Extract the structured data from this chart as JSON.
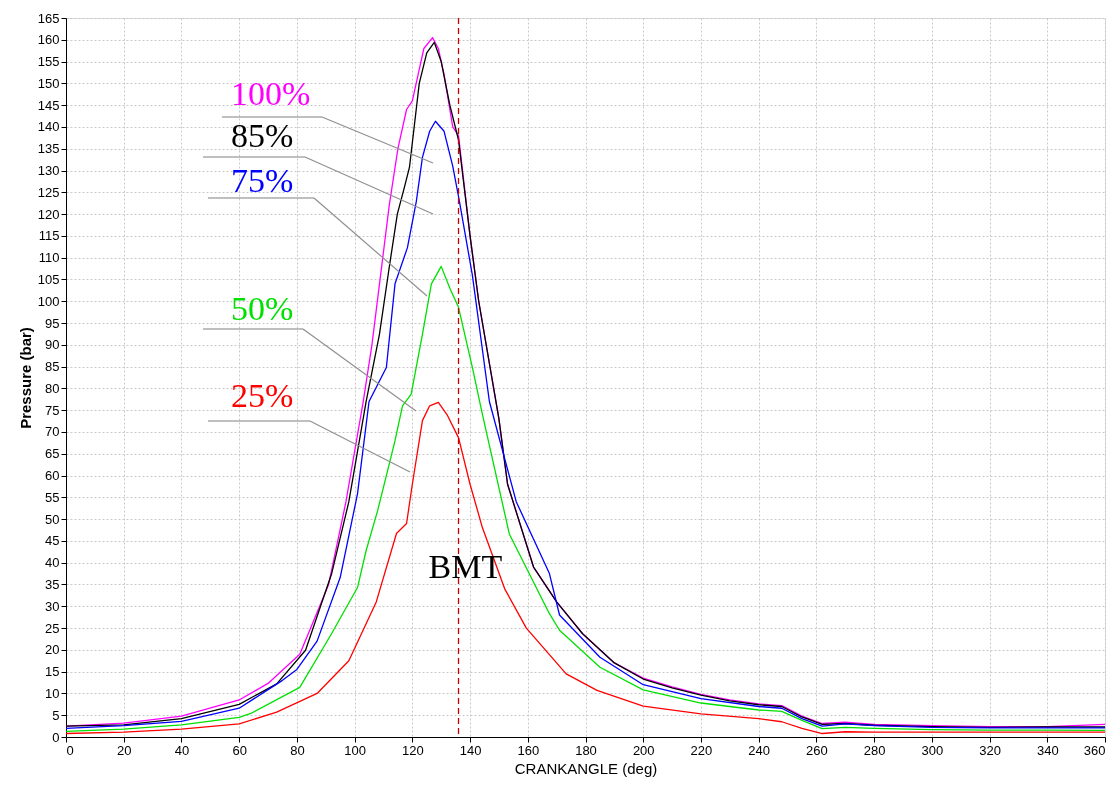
{
  "chart_data": {
    "type": "line",
    "xlabel": "CRANKANGLE (deg)",
    "ylabel": "Pressure (bar)",
    "xlim": [
      0,
      360
    ],
    "xticks": [
      0,
      20,
      40,
      60,
      80,
      100,
      120,
      140,
      160,
      180,
      200,
      220,
      240,
      260,
      280,
      300,
      320,
      340,
      360
    ],
    "ylim": [
      0,
      165
    ],
    "yticks": [
      0,
      5,
      10,
      15,
      20,
      25,
      30,
      35,
      40,
      45,
      50,
      55,
      60,
      65,
      70,
      75,
      80,
      85,
      90,
      95,
      100,
      105,
      110,
      115,
      120,
      125,
      130,
      135,
      140,
      145,
      150,
      155,
      160,
      165
    ],
    "grid": true,
    "line_style": "solid",
    "series": [
      {
        "name": "100%",
        "color": "#ff00ff",
        "x": [
          0,
          20,
          40,
          60,
          70,
          81,
          91,
          97,
          103,
          106,
          109,
          112,
          115,
          118,
          120,
          122,
          124,
          127,
          129,
          131,
          134,
          136,
          140,
          143,
          150,
          153,
          162,
          170,
          179,
          190,
          200,
          210,
          220,
          230,
          240,
          248,
          255,
          262,
          270,
          280,
          300,
          320,
          340,
          360
        ],
        "values": [
          2.5,
          3.2,
          4.8,
          8.5,
          12.3,
          19,
          35,
          54,
          77,
          90,
          106,
          122,
          135,
          144,
          146,
          152,
          158,
          160.5,
          158,
          152,
          140,
          138,
          115,
          100,
          73,
          58,
          39,
          31,
          23.7,
          17,
          13.5,
          11.5,
          9.8,
          8.5,
          7.6,
          7.2,
          4.8,
          3.1,
          3.4,
          2.9,
          2.6,
          2.4,
          2.4,
          2.9
        ]
      },
      {
        "name": "85%",
        "color": "#000000",
        "x": [
          0,
          20,
          40,
          60,
          73,
          83,
          92,
          98,
          104,
          108.6,
          112,
          114.8,
          117.2,
          119,
          122.4,
          125,
          127.6,
          130,
          133,
          136,
          140,
          143,
          150,
          153,
          162,
          170,
          179,
          190,
          200,
          210,
          220,
          230,
          240,
          248,
          255,
          262,
          270,
          280,
          300,
          320,
          340,
          360
        ],
        "values": [
          2.5,
          2.8,
          4.2,
          7.5,
          12.2,
          19.9,
          37.4,
          54,
          77,
          92.4,
          107.8,
          120,
          126,
          130.7,
          150,
          157,
          159.4,
          155,
          145,
          137,
          115,
          100,
          73,
          58,
          39,
          31,
          23.7,
          17,
          13.3,
          11.3,
          9.6,
          8.3,
          7.4,
          7.0,
          4.6,
          2.9,
          3.1,
          2.7,
          2.4,
          2.2,
          2.3,
          2.3
        ]
      },
      {
        "name": "75%",
        "color": "#0000ff",
        "x": [
          0,
          20,
          40,
          60,
          75,
          80,
          87,
          95,
          101,
          105,
          111,
          114,
          118.3,
          121.4,
          123.5,
          126,
          128,
          131,
          134,
          136.3,
          140.8,
          146.7,
          156,
          167.5,
          171,
          185,
          200,
          220,
          240,
          248,
          255,
          262,
          270,
          280,
          300,
          320,
          340,
          360
        ],
        "values": [
          2,
          2.6,
          3.6,
          6.6,
          13,
          15.5,
          22,
          36.6,
          55.8,
          77,
          84.8,
          104,
          112.3,
          123,
          133,
          139,
          141.3,
          139,
          131,
          123,
          106,
          77,
          54,
          37.5,
          28,
          18.3,
          12,
          8.8,
          7,
          6.6,
          4.2,
          2.5,
          3,
          2.6,
          2.2,
          2.1,
          2.1,
          2.1
        ]
      },
      {
        "name": "50%",
        "color": "#00e000",
        "x": [
          0,
          20,
          40,
          60,
          64,
          81,
          92,
          101,
          104,
          108,
          111,
          114,
          116.6,
          119.6,
          123.5,
          126.6,
          130,
          133,
          136,
          140.8,
          144.3,
          153.6,
          167.5,
          171,
          185,
          200,
          220,
          240,
          248,
          255,
          262,
          270,
          280,
          300,
          320,
          340,
          360
        ],
        "values": [
          1.3,
          1.8,
          2.8,
          4.5,
          5.4,
          11.4,
          23.7,
          34.3,
          42.8,
          52,
          60,
          68,
          76,
          78.7,
          92.4,
          104,
          108,
          103,
          98.6,
          84.8,
          74,
          46.6,
          28.3,
          24.5,
          16,
          10.8,
          7.8,
          6.2,
          5.9,
          3.8,
          1.9,
          2.2,
          2,
          1.7,
          1.6,
          1.6,
          1.5
        ]
      },
      {
        "name": "25%",
        "color": "#ff0000",
        "x": [
          0,
          20,
          40,
          60,
          73,
          87,
          98,
          107.5,
          114.5,
          118,
          120,
          123.5,
          126,
          129,
          132,
          136,
          140,
          144.3,
          152,
          159.5,
          173.3,
          184,
          200,
          220,
          240,
          248,
          255,
          262,
          270,
          280,
          300,
          320,
          340,
          360
        ],
        "values": [
          0.8,
          1.1,
          1.8,
          3,
          5.7,
          10,
          17.5,
          31,
          46.7,
          49,
          58,
          72.6,
          76,
          76.8,
          74,
          68.7,
          58,
          48,
          34,
          25,
          14.5,
          10.7,
          7.1,
          5.3,
          4.2,
          3.5,
          2,
          0.8,
          1.2,
          1.1,
          1.1,
          1.1,
          1.1,
          1.1
        ]
      }
    ],
    "ref_lines": [
      {
        "axis": "x",
        "value": 136,
        "label": "BMT",
        "color": "#cc0000",
        "line_style": "dashed"
      }
    ]
  }
}
